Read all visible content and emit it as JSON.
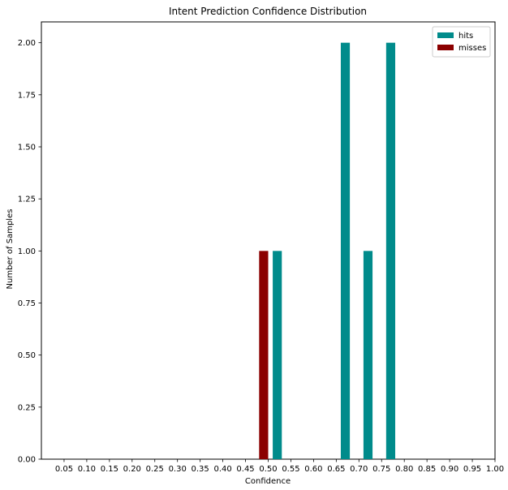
{
  "chart_data": {
    "type": "bar",
    "title": "Intent Prediction Confidence Distribution",
    "xlabel": "Confidence",
    "ylabel": "Number of Samples",
    "xlim": [
      0.0,
      1.0
    ],
    "ylim": [
      0.0,
      2.1
    ],
    "x_ticks": [
      "0.05",
      "0.10",
      "0.15",
      "0.20",
      "0.25",
      "0.30",
      "0.35",
      "0.40",
      "0.45",
      "0.50",
      "0.55",
      "0.60",
      "0.65",
      "0.70",
      "0.75",
      "0.80",
      "0.85",
      "0.90",
      "0.95",
      "1.00"
    ],
    "y_ticks": [
      "0.00",
      "0.25",
      "0.50",
      "0.75",
      "1.00",
      "1.25",
      "1.50",
      "1.75",
      "2.00"
    ],
    "grid": false,
    "legend_position": "top-right",
    "series": [
      {
        "name": "hits",
        "color": "#008b8b",
        "bars": [
          {
            "x": 0.52,
            "value": 1
          },
          {
            "x": 0.67,
            "value": 2
          },
          {
            "x": 0.72,
            "value": 1
          },
          {
            "x": 0.77,
            "value": 2
          }
        ]
      },
      {
        "name": "misses",
        "color": "#8b0000",
        "bars": [
          {
            "x": 0.49,
            "value": 1
          }
        ]
      }
    ]
  }
}
